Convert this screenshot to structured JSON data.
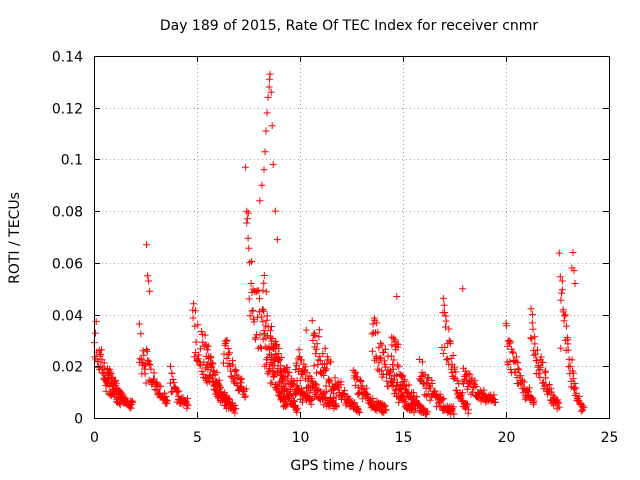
{
  "chart_data": {
    "type": "scatter",
    "title": "Day 189 of 2015, Rate Of TEC Index for receiver cnmr",
    "xlabel": "GPS time / hours",
    "ylabel": "ROTI / TECUs",
    "xlim": [
      0,
      25
    ],
    "ylim": [
      0,
      0.14
    ],
    "xticks": [
      0,
      5,
      10,
      15,
      20,
      25
    ],
    "xtick_labels": [
      "0",
      "5",
      "10",
      "15",
      "20",
      "25"
    ],
    "yticks": [
      0,
      0.02,
      0.04,
      0.06,
      0.08,
      0.1,
      0.12,
      0.14
    ],
    "ytick_labels": [
      "0",
      "0.02",
      "0.04",
      "0.06",
      "0.08",
      "0.1",
      "0.12",
      "0.14"
    ],
    "grid": true,
    "marker": "+",
    "series": [
      {
        "name": "ROTI",
        "color": "#ff0000",
        "bursts": [
          {
            "t0": 0.0,
            "t1": 1.6,
            "peak": 0.04,
            "base": 0.008
          },
          {
            "t0": 0.5,
            "t1": 1.9,
            "peak": 0.02,
            "base": 0.006
          },
          {
            "t0": 2.2,
            "t1": 3.6,
            "peak": 0.038,
            "base": 0.008
          },
          {
            "t0": 3.7,
            "t1": 4.6,
            "peak": 0.02,
            "base": 0.006
          },
          {
            "t0": 4.8,
            "t1": 6.6,
            "peak": 0.05,
            "base": 0.006
          },
          {
            "t0": 5.4,
            "t1": 6.9,
            "peak": 0.032,
            "base": 0.004
          },
          {
            "t0": 6.3,
            "t1": 7.4,
            "peak": 0.036,
            "base": 0.012
          },
          {
            "t0": 7.4,
            "t1": 9.4,
            "peak": 0.09,
            "base": 0.006
          },
          {
            "t0": 8.2,
            "t1": 9.9,
            "peak": 0.06,
            "base": 0.004
          },
          {
            "t0": 8.6,
            "t1": 10.6,
            "peak": 0.034,
            "base": 0.008
          },
          {
            "t0": 9.8,
            "t1": 11.8,
            "peak": 0.03,
            "base": 0.006
          },
          {
            "t0": 10.6,
            "t1": 12.9,
            "peak": 0.042,
            "base": 0.004
          },
          {
            "t0": 12.6,
            "t1": 14.2,
            "peak": 0.02,
            "base": 0.004
          },
          {
            "t0": 13.5,
            "t1": 15.6,
            "peak": 0.044,
            "base": 0.004
          },
          {
            "t0": 14.4,
            "t1": 16.2,
            "peak": 0.04,
            "base": 0.002
          },
          {
            "t0": 15.8,
            "t1": 17.5,
            "peak": 0.024,
            "base": 0.003
          },
          {
            "t0": 16.9,
            "t1": 18.2,
            "peak": 0.052,
            "base": 0.004
          },
          {
            "t0": 17.9,
            "t1": 19.5,
            "peak": 0.02,
            "base": 0.008
          },
          {
            "t0": 20.0,
            "t1": 21.4,
            "peak": 0.04,
            "base": 0.008
          },
          {
            "t0": 21.2,
            "t1": 22.6,
            "peak": 0.046,
            "base": 0.006
          },
          {
            "t0": 22.6,
            "t1": 23.8,
            "peak": 0.064,
            "base": 0.004
          }
        ],
        "outliers": [
          {
            "x": 2.55,
            "y": 0.067
          },
          {
            "x": 2.6,
            "y": 0.055
          },
          {
            "x": 2.65,
            "y": 0.053
          },
          {
            "x": 2.7,
            "y": 0.049
          },
          {
            "x": 7.35,
            "y": 0.097
          },
          {
            "x": 8.05,
            "y": 0.084
          },
          {
            "x": 8.15,
            "y": 0.09
          },
          {
            "x": 8.25,
            "y": 0.096
          },
          {
            "x": 8.3,
            "y": 0.103
          },
          {
            "x": 8.35,
            "y": 0.111
          },
          {
            "x": 8.4,
            "y": 0.118
          },
          {
            "x": 8.45,
            "y": 0.124
          },
          {
            "x": 8.5,
            "y": 0.128
          },
          {
            "x": 8.52,
            "y": 0.131
          },
          {
            "x": 8.55,
            "y": 0.133
          },
          {
            "x": 8.6,
            "y": 0.126
          },
          {
            "x": 8.65,
            "y": 0.113
          },
          {
            "x": 8.7,
            "y": 0.098
          },
          {
            "x": 8.8,
            "y": 0.08
          },
          {
            "x": 8.9,
            "y": 0.069
          },
          {
            "x": 10.3,
            "y": 0.034
          },
          {
            "x": 14.7,
            "y": 0.047
          },
          {
            "x": 17.9,
            "y": 0.05
          },
          {
            "x": 23.25,
            "y": 0.064
          },
          {
            "x": 23.2,
            "y": 0.058
          },
          {
            "x": 23.3,
            "y": 0.057
          },
          {
            "x": 23.35,
            "y": 0.052
          }
        ]
      }
    ]
  }
}
